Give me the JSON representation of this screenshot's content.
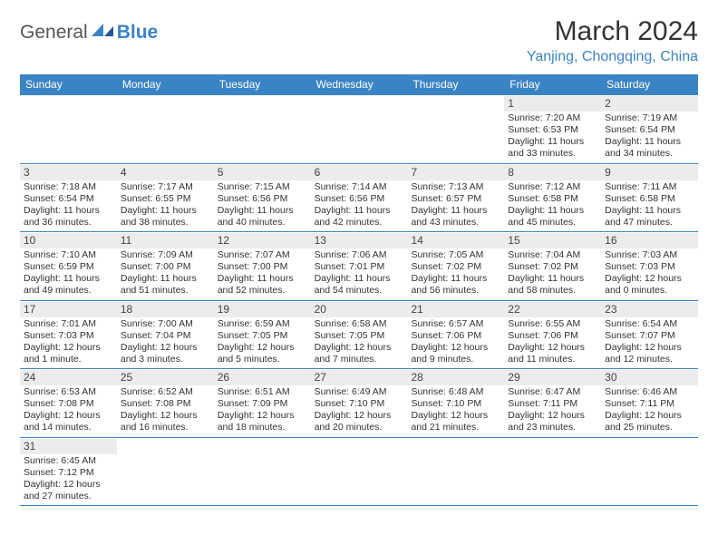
{
  "logo": {
    "text1": "General",
    "text2": "Blue",
    "accent_color": "#3b84c4",
    "dark_color": "#1f5b8f"
  },
  "title": "March 2024",
  "subtitle": "Yanjing, Chongqing, China",
  "subtitle_color": "#3b84c4",
  "header_bg": "#3b84c4",
  "daynum_bg": "#ececec",
  "weekdays": [
    "Sunday",
    "Monday",
    "Tuesday",
    "Wednesday",
    "Thursday",
    "Friday",
    "Saturday"
  ],
  "weeks": [
    [
      null,
      null,
      null,
      null,
      null,
      {
        "n": "1",
        "sr": "Sunrise: 7:20 AM",
        "ss": "Sunset: 6:53 PM",
        "d1": "Daylight: 11 hours",
        "d2": "and 33 minutes."
      },
      {
        "n": "2",
        "sr": "Sunrise: 7:19 AM",
        "ss": "Sunset: 6:54 PM",
        "d1": "Daylight: 11 hours",
        "d2": "and 34 minutes."
      }
    ],
    [
      {
        "n": "3",
        "sr": "Sunrise: 7:18 AM",
        "ss": "Sunset: 6:54 PM",
        "d1": "Daylight: 11 hours",
        "d2": "and 36 minutes."
      },
      {
        "n": "4",
        "sr": "Sunrise: 7:17 AM",
        "ss": "Sunset: 6:55 PM",
        "d1": "Daylight: 11 hours",
        "d2": "and 38 minutes."
      },
      {
        "n": "5",
        "sr": "Sunrise: 7:15 AM",
        "ss": "Sunset: 6:56 PM",
        "d1": "Daylight: 11 hours",
        "d2": "and 40 minutes."
      },
      {
        "n": "6",
        "sr": "Sunrise: 7:14 AM",
        "ss": "Sunset: 6:56 PM",
        "d1": "Daylight: 11 hours",
        "d2": "and 42 minutes."
      },
      {
        "n": "7",
        "sr": "Sunrise: 7:13 AM",
        "ss": "Sunset: 6:57 PM",
        "d1": "Daylight: 11 hours",
        "d2": "and 43 minutes."
      },
      {
        "n": "8",
        "sr": "Sunrise: 7:12 AM",
        "ss": "Sunset: 6:58 PM",
        "d1": "Daylight: 11 hours",
        "d2": "and 45 minutes."
      },
      {
        "n": "9",
        "sr": "Sunrise: 7:11 AM",
        "ss": "Sunset: 6:58 PM",
        "d1": "Daylight: 11 hours",
        "d2": "and 47 minutes."
      }
    ],
    [
      {
        "n": "10",
        "sr": "Sunrise: 7:10 AM",
        "ss": "Sunset: 6:59 PM",
        "d1": "Daylight: 11 hours",
        "d2": "and 49 minutes."
      },
      {
        "n": "11",
        "sr": "Sunrise: 7:09 AM",
        "ss": "Sunset: 7:00 PM",
        "d1": "Daylight: 11 hours",
        "d2": "and 51 minutes."
      },
      {
        "n": "12",
        "sr": "Sunrise: 7:07 AM",
        "ss": "Sunset: 7:00 PM",
        "d1": "Daylight: 11 hours",
        "d2": "and 52 minutes."
      },
      {
        "n": "13",
        "sr": "Sunrise: 7:06 AM",
        "ss": "Sunset: 7:01 PM",
        "d1": "Daylight: 11 hours",
        "d2": "and 54 minutes."
      },
      {
        "n": "14",
        "sr": "Sunrise: 7:05 AM",
        "ss": "Sunset: 7:02 PM",
        "d1": "Daylight: 11 hours",
        "d2": "and 56 minutes."
      },
      {
        "n": "15",
        "sr": "Sunrise: 7:04 AM",
        "ss": "Sunset: 7:02 PM",
        "d1": "Daylight: 11 hours",
        "d2": "and 58 minutes."
      },
      {
        "n": "16",
        "sr": "Sunrise: 7:03 AM",
        "ss": "Sunset: 7:03 PM",
        "d1": "Daylight: 12 hours",
        "d2": "and 0 minutes."
      }
    ],
    [
      {
        "n": "17",
        "sr": "Sunrise: 7:01 AM",
        "ss": "Sunset: 7:03 PM",
        "d1": "Daylight: 12 hours",
        "d2": "and 1 minute."
      },
      {
        "n": "18",
        "sr": "Sunrise: 7:00 AM",
        "ss": "Sunset: 7:04 PM",
        "d1": "Daylight: 12 hours",
        "d2": "and 3 minutes."
      },
      {
        "n": "19",
        "sr": "Sunrise: 6:59 AM",
        "ss": "Sunset: 7:05 PM",
        "d1": "Daylight: 12 hours",
        "d2": "and 5 minutes."
      },
      {
        "n": "20",
        "sr": "Sunrise: 6:58 AM",
        "ss": "Sunset: 7:05 PM",
        "d1": "Daylight: 12 hours",
        "d2": "and 7 minutes."
      },
      {
        "n": "21",
        "sr": "Sunrise: 6:57 AM",
        "ss": "Sunset: 7:06 PM",
        "d1": "Daylight: 12 hours",
        "d2": "and 9 minutes."
      },
      {
        "n": "22",
        "sr": "Sunrise: 6:55 AM",
        "ss": "Sunset: 7:06 PM",
        "d1": "Daylight: 12 hours",
        "d2": "and 11 minutes."
      },
      {
        "n": "23",
        "sr": "Sunrise: 6:54 AM",
        "ss": "Sunset: 7:07 PM",
        "d1": "Daylight: 12 hours",
        "d2": "and 12 minutes."
      }
    ],
    [
      {
        "n": "24",
        "sr": "Sunrise: 6:53 AM",
        "ss": "Sunset: 7:08 PM",
        "d1": "Daylight: 12 hours",
        "d2": "and 14 minutes."
      },
      {
        "n": "25",
        "sr": "Sunrise: 6:52 AM",
        "ss": "Sunset: 7:08 PM",
        "d1": "Daylight: 12 hours",
        "d2": "and 16 minutes."
      },
      {
        "n": "26",
        "sr": "Sunrise: 6:51 AM",
        "ss": "Sunset: 7:09 PM",
        "d1": "Daylight: 12 hours",
        "d2": "and 18 minutes."
      },
      {
        "n": "27",
        "sr": "Sunrise: 6:49 AM",
        "ss": "Sunset: 7:10 PM",
        "d1": "Daylight: 12 hours",
        "d2": "and 20 minutes."
      },
      {
        "n": "28",
        "sr": "Sunrise: 6:48 AM",
        "ss": "Sunset: 7:10 PM",
        "d1": "Daylight: 12 hours",
        "d2": "and 21 minutes."
      },
      {
        "n": "29",
        "sr": "Sunrise: 6:47 AM",
        "ss": "Sunset: 7:11 PM",
        "d1": "Daylight: 12 hours",
        "d2": "and 23 minutes."
      },
      {
        "n": "30",
        "sr": "Sunrise: 6:46 AM",
        "ss": "Sunset: 7:11 PM",
        "d1": "Daylight: 12 hours",
        "d2": "and 25 minutes."
      }
    ],
    [
      {
        "n": "31",
        "sr": "Sunrise: 6:45 AM",
        "ss": "Sunset: 7:12 PM",
        "d1": "Daylight: 12 hours",
        "d2": "and 27 minutes."
      },
      null,
      null,
      null,
      null,
      null,
      null
    ]
  ]
}
